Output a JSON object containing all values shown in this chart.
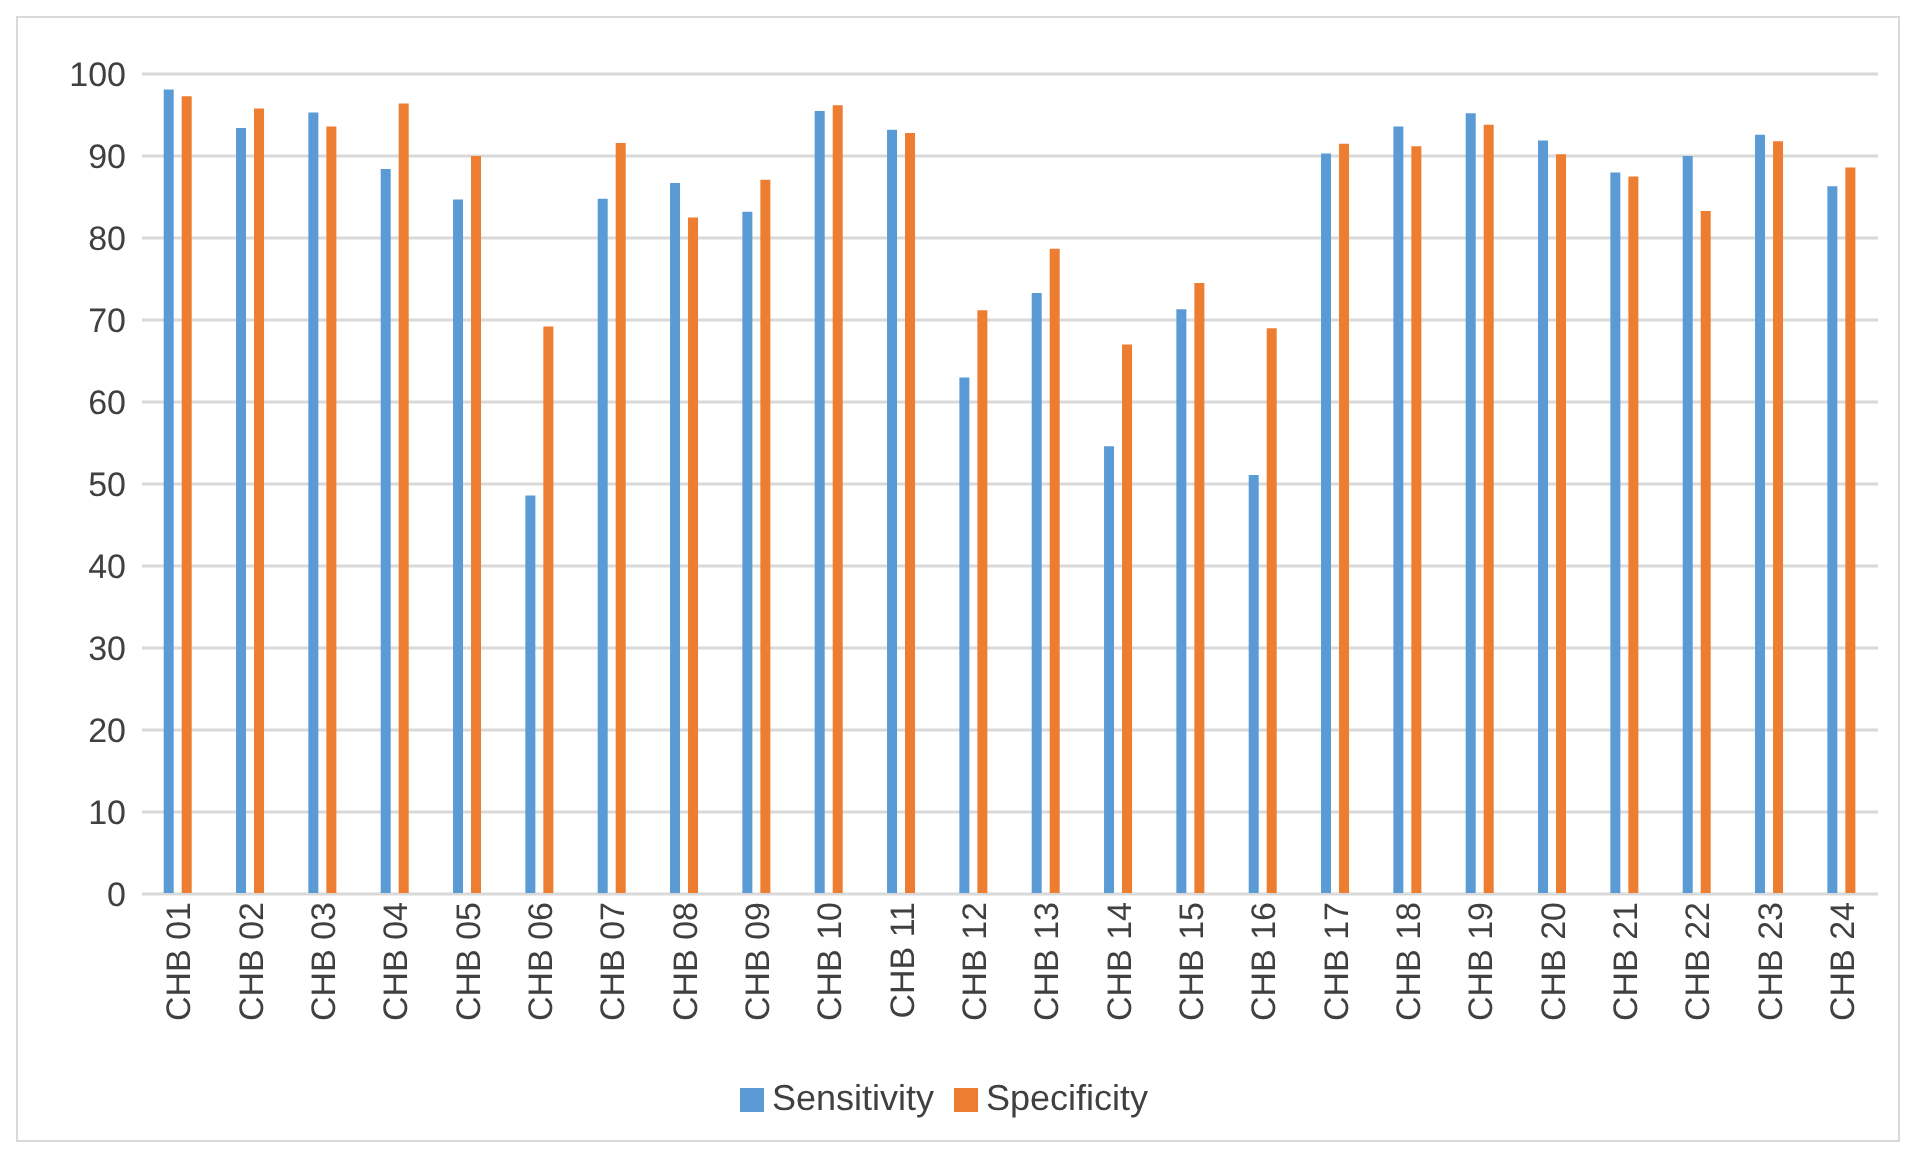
{
  "chart_data": {
    "type": "bar",
    "categories": [
      "CHB 01",
      "CHB 02",
      "CHB 03",
      "CHB 04",
      "CHB 05",
      "CHB 06",
      "CHB 07",
      "CHB 08",
      "CHB 09",
      "CHB 10",
      "CHB 11",
      "CHB 12",
      "CHB 13",
      "CHB 14",
      "CHB 15",
      "CHB 16",
      "CHB 17",
      "CHB 18",
      "CHB 19",
      "CHB 20",
      "CHB 21",
      "CHB 22",
      "CHB 23",
      "CHB 24"
    ],
    "series": [
      {
        "name": "Sensitivity",
        "color": "#5b9bd5",
        "values": [
          98.1,
          93.4,
          95.3,
          88.4,
          84.7,
          48.6,
          84.8,
          86.7,
          83.2,
          95.5,
          93.2,
          63.0,
          73.3,
          54.6,
          71.3,
          51.1,
          90.3,
          93.6,
          95.2,
          91.9,
          88.0,
          90.0,
          92.6,
          86.3
        ]
      },
      {
        "name": "Specificity",
        "color": "#ed7d31",
        "values": [
          97.3,
          95.8,
          93.6,
          96.4,
          90.0,
          69.2,
          91.6,
          82.5,
          87.1,
          96.2,
          92.8,
          71.2,
          78.7,
          67.0,
          74.5,
          69.0,
          91.5,
          91.2,
          93.8,
          90.2,
          87.5,
          83.3,
          91.8,
          88.6
        ]
      }
    ],
    "ylim": [
      0,
      100
    ],
    "yticks": [
      0,
      10,
      20,
      30,
      40,
      50,
      60,
      70,
      80,
      90,
      100
    ],
    "grid": "y",
    "legend": "bottom"
  }
}
